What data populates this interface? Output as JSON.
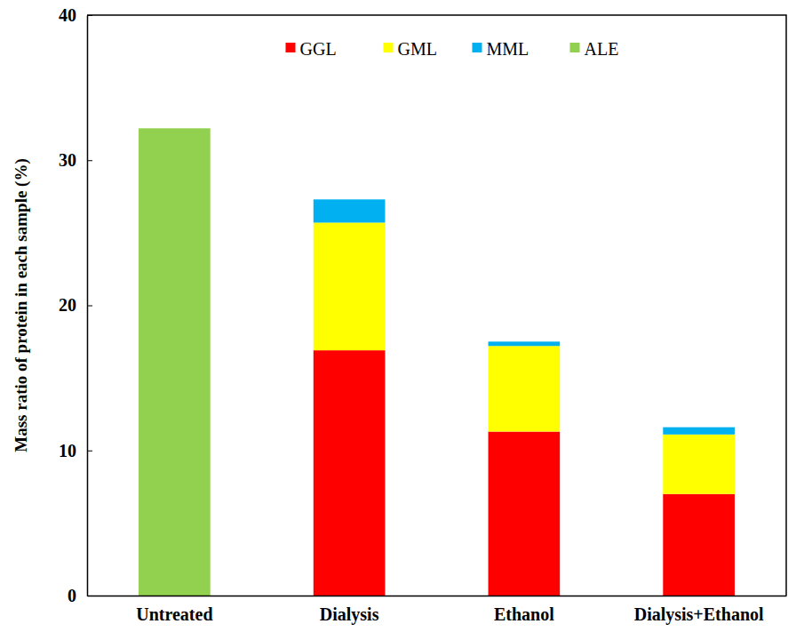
{
  "chart_data": {
    "type": "bar",
    "stacked": true,
    "y_label": "Mass ratio of protein in each sample (%)",
    "categories": [
      "Untreated",
      "Dialysis",
      "Ethanol",
      "Dialysis+Ethanol"
    ],
    "series": [
      {
        "name": "GGL",
        "color": "#ff0000",
        "values": [
          0,
          16.9,
          11.3,
          7.0
        ]
      },
      {
        "name": "GML",
        "color": "#ffff00",
        "values": [
          0,
          8.8,
          5.9,
          4.1
        ]
      },
      {
        "name": "MML",
        "color": "#00b0f0",
        "values": [
          0,
          1.6,
          0.3,
          0.5
        ]
      },
      {
        "name": "ALE",
        "color": "#92d050",
        "values": [
          32.2,
          0,
          0,
          0
        ]
      }
    ],
    "ylim": [
      0,
      40
    ],
    "yticks": [
      0,
      10,
      20,
      30,
      40
    ],
    "grid": false,
    "legend": "top"
  }
}
